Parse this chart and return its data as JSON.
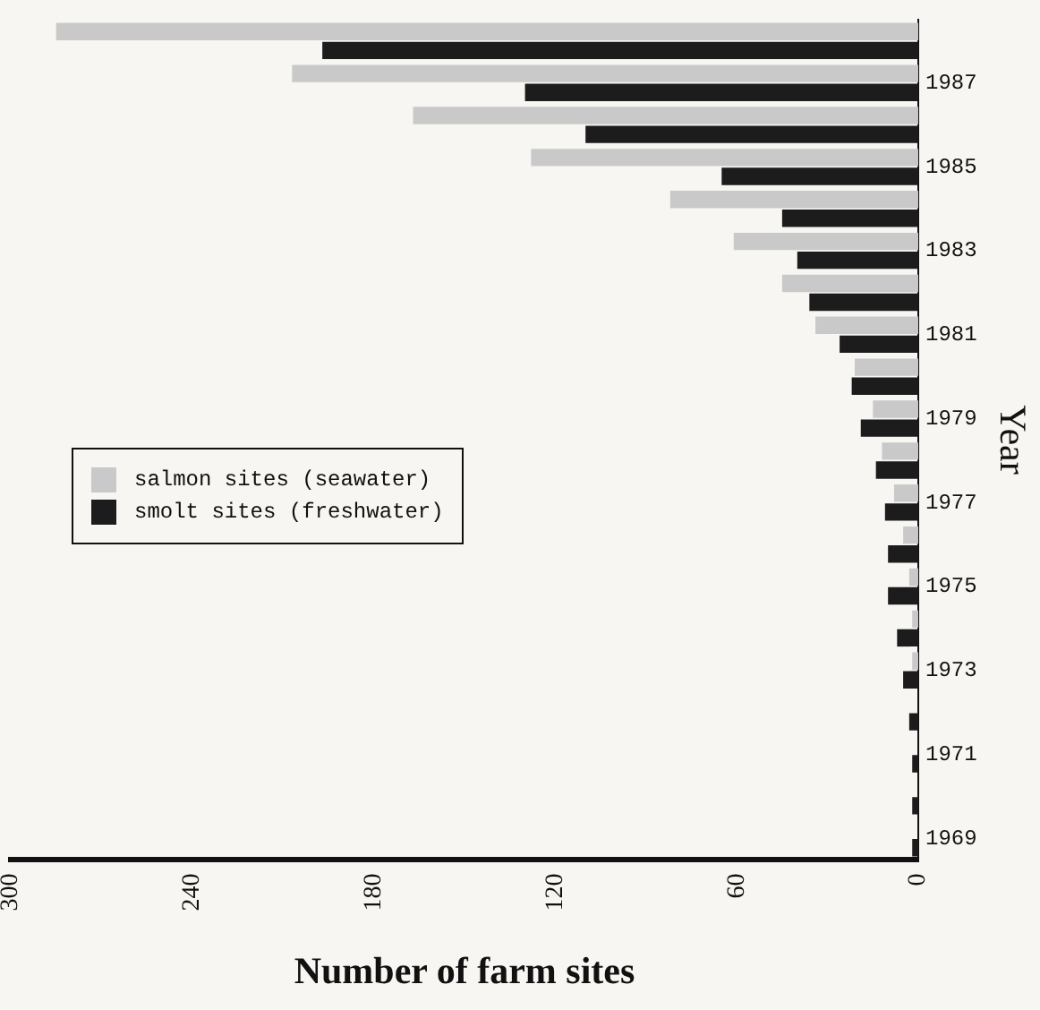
{
  "chart_data": {
    "type": "bar",
    "orientation": "horizontal",
    "xlabel": "Number of farm sites",
    "ylabel": "Year",
    "categories": [
      null,
      "1987",
      null,
      "1985",
      null,
      "1983",
      null,
      "1981",
      null,
      "1979",
      null,
      "1977",
      null,
      "1975",
      null,
      "1973",
      null,
      "1971",
      null,
      "1969"
    ],
    "series": [
      {
        "name": "salmon sites (seawater)",
        "color": "#c9c9c9",
        "values": [
          285,
          207,
          167,
          128,
          82,
          61,
          45,
          34,
          21,
          15,
          12,
          8,
          5,
          3,
          2,
          2,
          0,
          0,
          0,
          0
        ]
      },
      {
        "name": "smolt sites (freshwater)",
        "color": "#1c1c1c",
        "values": [
          197,
          130,
          110,
          65,
          45,
          40,
          36,
          26,
          22,
          19,
          14,
          11,
          10,
          10,
          7,
          5,
          3,
          2,
          2,
          2
        ]
      }
    ],
    "xlim": [
      300,
      0
    ],
    "xticks": [
      0,
      60,
      120,
      180,
      240,
      300
    ],
    "grid": false,
    "legend": "left"
  }
}
